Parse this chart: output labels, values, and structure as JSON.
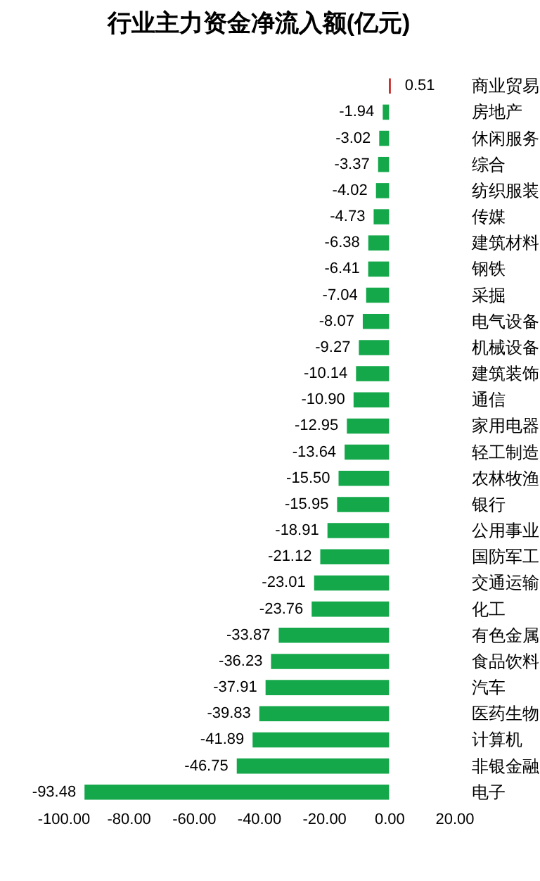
{
  "chart_data": {
    "type": "bar",
    "orientation": "horizontal",
    "title": "行业主力资金净流入额(亿元)",
    "categories": [
      "商业贸易",
      "房地产",
      "休闲服务",
      "综合",
      "纺织服装",
      "传媒",
      "建筑材料",
      "钢铁",
      "采掘",
      "电气设备",
      "机械设备",
      "建筑装饰",
      "通信",
      "家用电器",
      "轻工制造",
      "农林牧渔",
      "银行",
      "公用事业",
      "国防军工",
      "交通运输",
      "化工",
      "有色金属",
      "食品饮料",
      "汽车",
      "医药生物",
      "计算机",
      "非银金融",
      "电子"
    ],
    "values": [
      0.51,
      -1.94,
      -3.02,
      -3.37,
      -4.02,
      -4.73,
      -6.38,
      -6.41,
      -7.04,
      -8.07,
      -9.27,
      -10.14,
      -10.9,
      -12.95,
      -13.64,
      -15.5,
      -15.95,
      -18.91,
      -21.12,
      -23.01,
      -23.76,
      -33.87,
      -36.23,
      -37.91,
      -39.83,
      -41.89,
      -46.75,
      -93.48
    ],
    "colors": [
      "#c00000",
      "#14a84a",
      "#14a84a",
      "#14a84a",
      "#14a84a",
      "#14a84a",
      "#14a84a",
      "#14a84a",
      "#14a84a",
      "#14a84a",
      "#14a84a",
      "#14a84a",
      "#14a84a",
      "#14a84a",
      "#14a84a",
      "#14a84a",
      "#14a84a",
      "#14a84a",
      "#14a84a",
      "#14a84a",
      "#14a84a",
      "#14a84a",
      "#14a84a",
      "#14a84a",
      "#14a84a",
      "#14a84a",
      "#14a84a",
      "#14a84a"
    ],
    "xlim": [
      -100,
      20
    ],
    "xticks": [
      {
        "value": -100,
        "label": "-100.00"
      },
      {
        "value": -80,
        "label": "-80.00"
      },
      {
        "value": -60,
        "label": "-60.00"
      },
      {
        "value": -40,
        "label": "-40.00"
      },
      {
        "value": -20,
        "label": "-20.00"
      },
      {
        "value": 0,
        "label": "0.00"
      },
      {
        "value": 20,
        "label": "20.00"
      }
    ],
    "value_labels": [
      "0.51",
      "-1.94",
      "-3.02",
      "-3.37",
      "-4.02",
      "-4.73",
      "-6.38",
      "-6.41",
      "-7.04",
      "-8.07",
      "-9.27",
      "-10.14",
      "-10.90",
      "-12.95",
      "-13.64",
      "-15.50",
      "-15.95",
      "-18.91",
      "-21.12",
      "-23.01",
      "-23.76",
      "-33.87",
      "-36.23",
      "-37.91",
      "-39.83",
      "-41.89",
      "-46.75",
      "-93.48"
    ],
    "grid": false
  }
}
